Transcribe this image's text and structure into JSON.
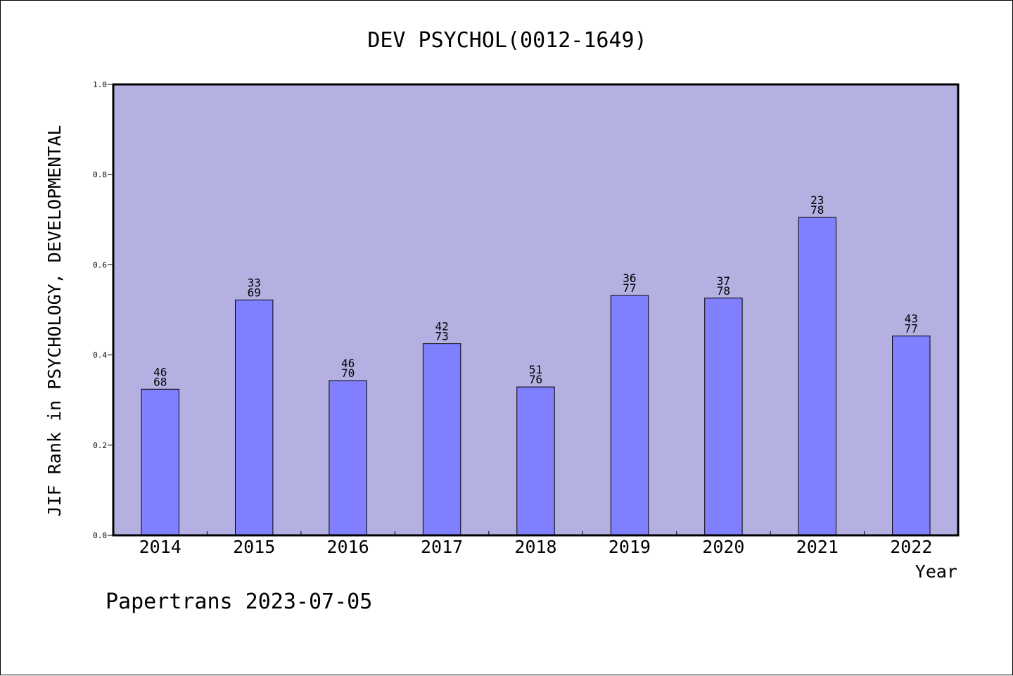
{
  "chart_data": {
    "type": "bar",
    "title": "DEV PSYCHOL(0012-1649)",
    "xlabel": "Year",
    "ylabel": "JIF Rank in PSYCHOLOGY, DEVELOPMENTAL",
    "categories": [
      "2014",
      "2015",
      "2016",
      "2017",
      "2018",
      "2019",
      "2020",
      "2021",
      "2022"
    ],
    "values": [
      0.324,
      0.522,
      0.343,
      0.425,
      0.329,
      0.532,
      0.526,
      0.705,
      0.442
    ],
    "bar_labels": [
      [
        "46",
        "68"
      ],
      [
        "33",
        "69"
      ],
      [
        "46",
        "70"
      ],
      [
        "42",
        "73"
      ],
      [
        "51",
        "76"
      ],
      [
        "36",
        "77"
      ],
      [
        "37",
        "78"
      ],
      [
        "23",
        "78"
      ],
      [
        "43",
        "77"
      ]
    ],
    "ylim": [
      0,
      1.0
    ],
    "yticks": [
      "0.0",
      "0.2",
      "0.4",
      "0.6",
      "0.8",
      "1.0"
    ],
    "grid": false,
    "colors": {
      "plot_background": "#b5b0e2",
      "bar_fill": "#8080ff",
      "bar_stroke": "#000000"
    }
  },
  "footer": {
    "text": "Papertrans 2023-07-05"
  }
}
